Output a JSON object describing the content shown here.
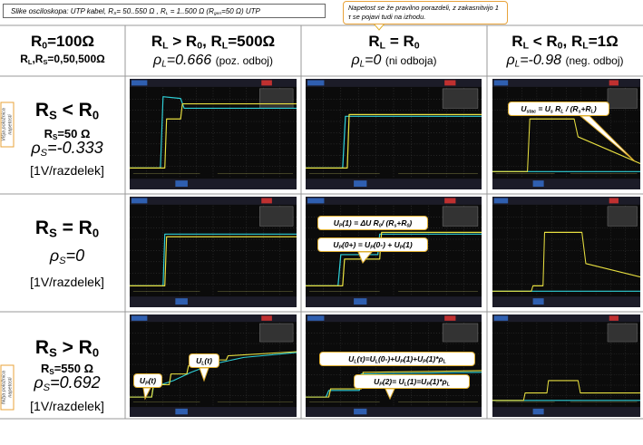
{
  "caption": [
    "Slike osciloskopa: UTP kabel, R",
    "S",
    "= 50..550 Ω , R",
    "L",
    " = 1..500 Ω (R",
    "gen",
    "=50 Ω)  UTP"
  ],
  "note": "Napetost se že pravilno porazdeli, z zakasnitvijo 1 τ se pojavi tudi na izhodu.",
  "header": [
    {
      "title": [
        "R",
        "0",
        "=100Ω"
      ],
      "sub": [
        "R",
        "L",
        ",R",
        "S",
        "=0,50,500Ω"
      ]
    },
    {
      "title": [
        "R",
        "L",
        " > R",
        "0",
        ", R",
        "L",
        "=500Ω"
      ],
      "rho": [
        "ρ",
        "L",
        "=0.666"
      ],
      "note": "(poz. odboj)"
    },
    {
      "title": [
        "R",
        "L",
        " = R",
        "0"
      ],
      "rho": [
        "ρ",
        "L",
        "=0"
      ],
      "note": "(ni odboja)"
    },
    {
      "title": [
        "R",
        "L",
        " < R",
        "0",
        ", R",
        "L",
        "=1Ω"
      ],
      "rho": [
        "ρ",
        "L",
        "=-0.98"
      ],
      "note": "(neg. odboj)"
    }
  ],
  "rows": [
    {
      "cond": [
        "R",
        "S",
        " < R",
        "0"
      ],
      "rs": [
        "R",
        "S",
        "=50 Ω"
      ],
      "rho": [
        "ρ",
        "S",
        "=-0.333"
      ],
      "scale": "[1V/razdelek]",
      "side": "Višja položnica napetosti"
    },
    {
      "cond": [
        "R",
        "S",
        " = R",
        "0"
      ],
      "rho": [
        "ρ",
        "S",
        "=0"
      ],
      "scale": "[1V/razdelek]"
    },
    {
      "cond": [
        "R",
        "S",
        " > R",
        "0"
      ],
      "rs": [
        "R",
        "S",
        "=550 Ω"
      ],
      "rho": [
        "ρ",
        "S",
        "=0.692"
      ],
      "scale": "[1V/razdelek]",
      "side": "Nižja položnica napetosti"
    }
  ],
  "callouts": [
    [
      "U",
      "stac",
      " = U",
      "s",
      " R",
      "L",
      " / (R",
      "s",
      "+R",
      "L",
      ")"
    ],
    [
      "U",
      "P",
      "(1) = ΔU R",
      "0",
      "/ (R",
      "s",
      "+R",
      "0",
      ")"
    ],
    [
      "U",
      "P",
      "(0+) = U",
      "P",
      "(0-) + U",
      "P",
      "(1)"
    ],
    [
      "U",
      "L",
      "(t)"
    ],
    [
      "U",
      "P",
      "(t)"
    ],
    [
      "U",
      "L",
      "(τ)=U",
      "L",
      "(0-)+U",
      "P",
      "(1)+U",
      "P",
      "(1)*ρ",
      "L"
    ],
    [
      "U",
      "P",
      "(2)= U",
      "L",
      "(1)=U",
      "P",
      "(1)*ρ",
      "L"
    ]
  ]
}
